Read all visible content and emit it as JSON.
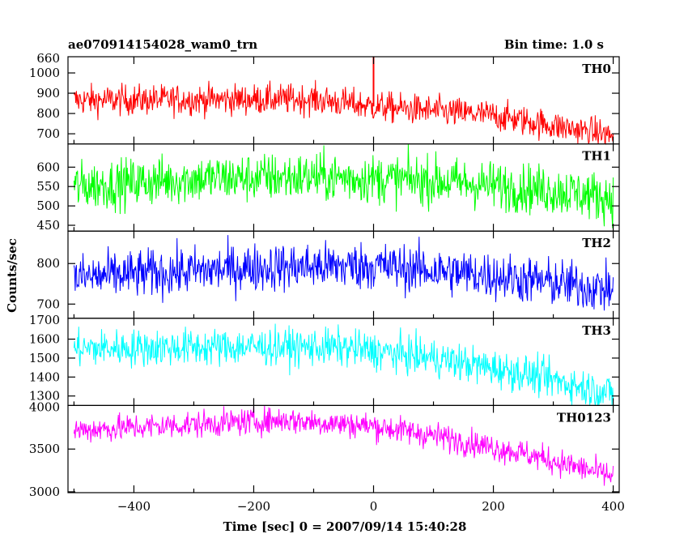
{
  "header": {
    "obs_id": "ae070914154028_wam0_trn",
    "bin_time": "Bin time: 1.0 s"
  },
  "axes": {
    "xlabel": "Time [sec] 0 = 2007/09/14 15:40:28",
    "ylabel": "Counts/sec"
  },
  "chart_data": {
    "type": "line",
    "x_range": [
      -510,
      410
    ],
    "x_ticks": [
      -400,
      -200,
      0,
      200,
      400
    ],
    "x_tick_labels": [
      "−400",
      "−200",
      "0",
      "200",
      "400"
    ],
    "series_points": 901,
    "panels": [
      {
        "label": "TH0",
        "color": "#ff0000",
        "ylim": [
          650,
          1080
        ],
        "yticks": [
          700,
          800,
          900,
          1000
        ],
        "ytick_labels": [
          "700",
          "800",
          "900",
          "1000"
        ],
        "top_label": "660",
        "trend": {
          "times": [
            -500,
            -200,
            -100,
            0,
            200,
            400
          ],
          "values": [
            865,
            870,
            870,
            835,
            790,
            690
          ]
        },
        "noise": 38,
        "spike": {
          "t": 0,
          "value": 1080
        }
      },
      {
        "label": "TH1",
        "color": "#00ff00",
        "ylim": [
          435,
          660
        ],
        "yticks": [
          450,
          500,
          550,
          600
        ],
        "ytick_labels": [
          "450",
          "500",
          "550",
          "600"
        ],
        "top_label": "",
        "trend": {
          "times": [
            -500,
            -300,
            -100,
            100,
            300,
            400
          ],
          "values": [
            550,
            570,
            575,
            565,
            540,
            520
          ]
        },
        "noise": 32
      },
      {
        "label": "TH2",
        "color": "#0000ff",
        "ylim": [
          665,
          880
        ],
        "yticks": [
          700,
          800
        ],
        "ytick_labels": [
          "700",
          "800"
        ],
        "top_label": "",
        "trend": {
          "times": [
            -500,
            -200,
            0,
            200,
            400
          ],
          "values": [
            765,
            790,
            795,
            770,
            735
          ]
        },
        "noise": 30
      },
      {
        "label": "TH3",
        "color": "#00ffff",
        "ylim": [
          1250,
          1710
        ],
        "yticks": [
          1300,
          1400,
          1500,
          1600
        ],
        "ytick_labels": [
          "1300",
          "1400",
          "1500",
          "1600"
        ],
        "top_label": "1700",
        "trend": {
          "times": [
            -500,
            -200,
            -50,
            100,
            250,
            400
          ],
          "values": [
            1550,
            1560,
            1555,
            1500,
            1420,
            1310
          ]
        },
        "noise": 50
      },
      {
        "label": "TH0123",
        "color": "#ff00ff",
        "ylim": [
          2990,
          4010
        ],
        "yticks": [
          3000,
          3500
        ],
        "ytick_labels": [
          "3000",
          "3500"
        ],
        "top_label": "4000",
        "trend": {
          "times": [
            -500,
            -150,
            0,
            100,
            250,
            400
          ],
          "values": [
            3720,
            3840,
            3770,
            3660,
            3450,
            3180
          ]
        },
        "noise": 80
      }
    ]
  }
}
